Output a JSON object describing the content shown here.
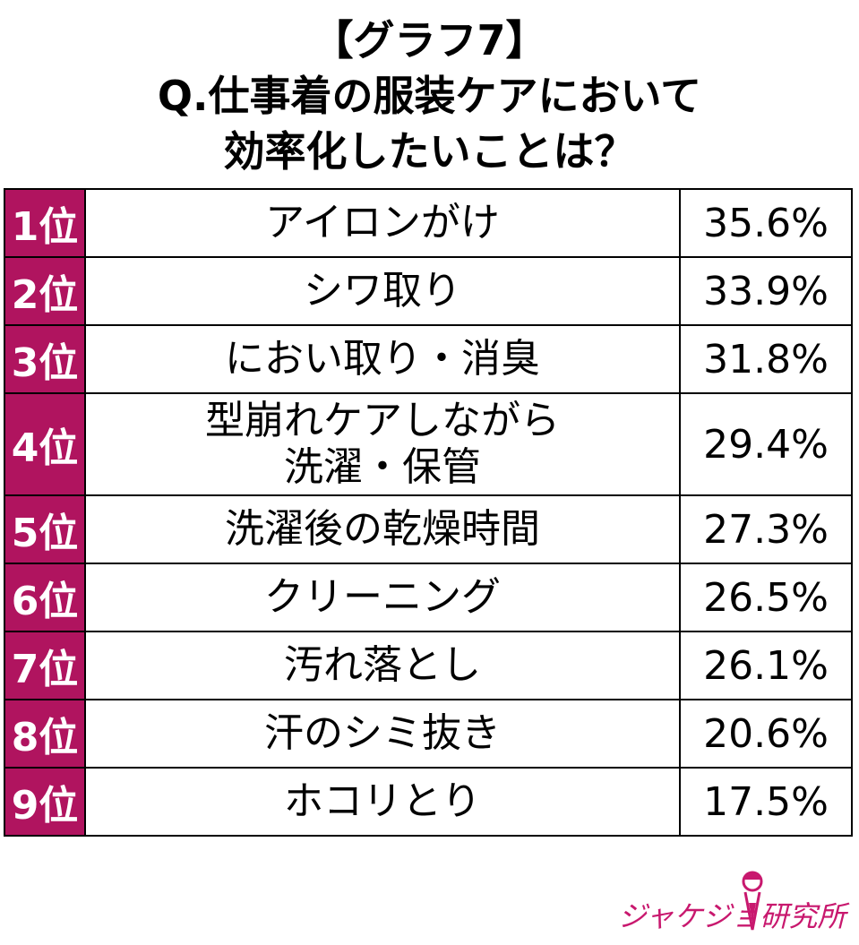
{
  "title": {
    "line1": "【グラフ7】",
    "line2": "Q.仕事着の服装ケアにおいて",
    "line3": "効率化したいことは？"
  },
  "chart_data": {
    "type": "table",
    "rows": [
      {
        "rank": "1位",
        "item": "アイロンがけ",
        "percent": "35.6%",
        "value": 35.6
      },
      {
        "rank": "2位",
        "item": "シワ取り",
        "percent": "33.9%",
        "value": 33.9
      },
      {
        "rank": "3位",
        "item": "におい取り・消臭",
        "percent": "31.8%",
        "value": 31.8
      },
      {
        "rank": "4位",
        "item": "型崩れケアしながら\n洗濯・保管",
        "percent": "29.4%",
        "value": 29.4
      },
      {
        "rank": "5位",
        "item": "洗濯後の乾燥時間",
        "percent": "27.3%",
        "value": 27.3
      },
      {
        "rank": "6位",
        "item": "クリーニング",
        "percent": "26.5%",
        "value": 26.5
      },
      {
        "rank": "7位",
        "item": "汚れ落とし",
        "percent": "26.1%",
        "value": 26.1
      },
      {
        "rank": "8位",
        "item": "汗のシミ抜き",
        "percent": "20.6%",
        "value": 20.6
      },
      {
        "rank": "9位",
        "item": "ホコリとり",
        "percent": "17.5%",
        "value": 17.5
      }
    ]
  },
  "logo": {
    "text": "ジャケジョ研究所",
    "icon": "woman-silhouette-icon"
  },
  "colors": {
    "rank_bg": "#b0145f",
    "logo": "#c8186e"
  }
}
